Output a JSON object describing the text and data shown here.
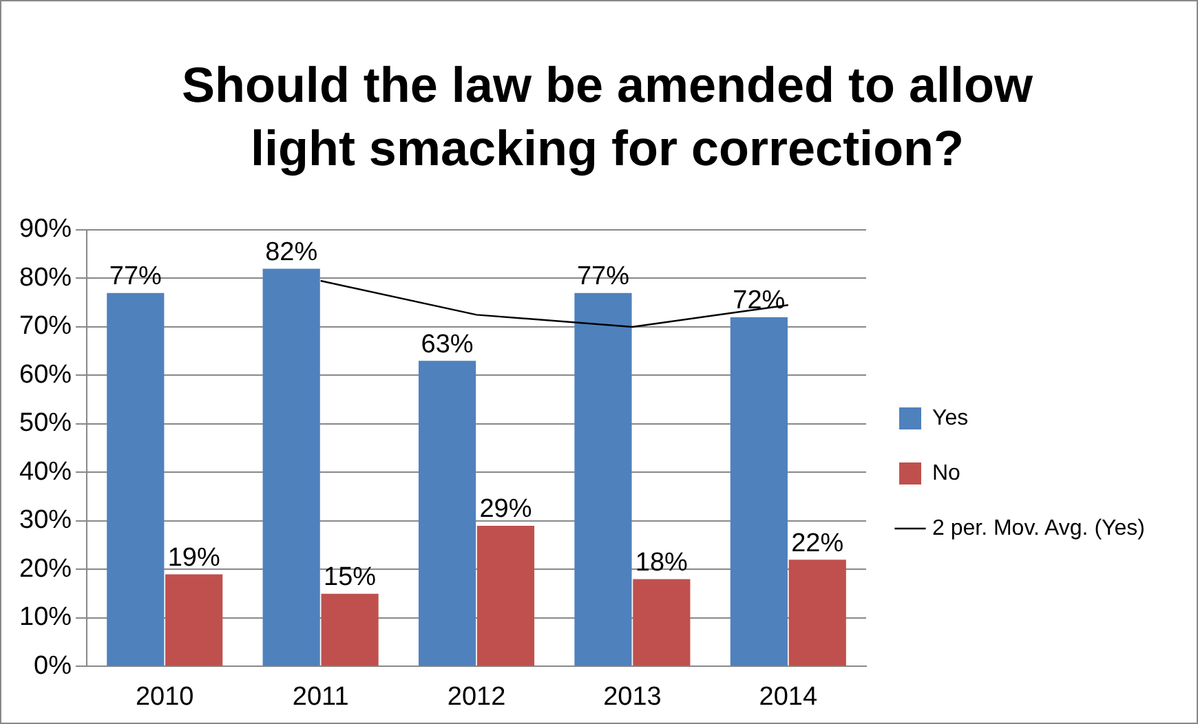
{
  "chart_data": {
    "type": "bar",
    "title": "Should the law be amended to allow light smacking for correction?",
    "categories": [
      "2010",
      "2011",
      "2012",
      "2013",
      "2014"
    ],
    "series": [
      {
        "name": "Yes",
        "color": "#4f81bd",
        "values": [
          77,
          82,
          63,
          77,
          72
        ],
        "value_labels": [
          "77%",
          "82%",
          "63%",
          "77%",
          "72%"
        ]
      },
      {
        "name": "No",
        "color": "#c0504d",
        "values": [
          19,
          15,
          29,
          18,
          22
        ],
        "value_labels": [
          "19%",
          "15%",
          "29%",
          "18%",
          "22%"
        ]
      },
      {
        "name": "2 per. Mov. Avg. (Yes)",
        "type": "line",
        "color": "#000000",
        "values": [
          null,
          79.5,
          72.5,
          70,
          74.5
        ]
      }
    ],
    "ylim": [
      0,
      90
    ],
    "yticks": [
      {
        "value": 0,
        "label": "0%"
      },
      {
        "value": 10,
        "label": "10%"
      },
      {
        "value": 20,
        "label": "20%"
      },
      {
        "value": 30,
        "label": "30%"
      },
      {
        "value": 40,
        "label": "40%"
      },
      {
        "value": 50,
        "label": "50%"
      },
      {
        "value": 60,
        "label": "60%"
      },
      {
        "value": 70,
        "label": "70%"
      },
      {
        "value": 80,
        "label": "80%"
      },
      {
        "value": 90,
        "label": "90%"
      }
    ],
    "grid": "y",
    "legend": "right",
    "marker": "none",
    "line_style": "solid"
  }
}
